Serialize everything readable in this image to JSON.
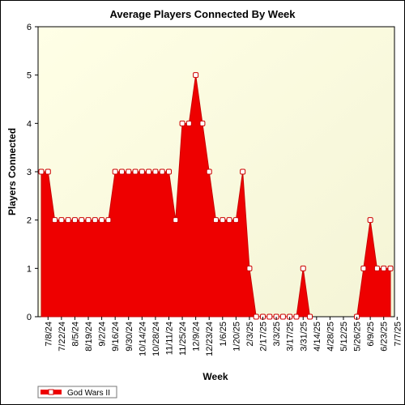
{
  "chart_data": {
    "type": "area",
    "title": "Average Players Connected By Week",
    "xlabel": "Week",
    "ylabel": "Players Connected",
    "ylim": [
      0,
      6
    ],
    "yticks": [
      0,
      1,
      2,
      3,
      4,
      5,
      6
    ],
    "grid": false,
    "legend_position": "bottom-left",
    "x_tick_labels": [
      "7/8/24",
      "7/22/24",
      "8/5/24",
      "8/19/24",
      "9/2/24",
      "9/16/24",
      "9/30/24",
      "10/14/24",
      "10/28/24",
      "11/11/24",
      "11/25/24",
      "12/9/24",
      "12/23/24",
      "1/6/25",
      "1/20/25",
      "2/3/25",
      "2/17/25",
      "3/3/25",
      "3/17/25",
      "3/31/25",
      "4/14/25",
      "4/28/25",
      "5/12/25",
      "5/26/25",
      "6/9/25",
      "6/23/25",
      "7/7/25"
    ],
    "series": [
      {
        "name": "God Wars II",
        "color": "#ee0000",
        "marker": "square-white",
        "points": [
          {
            "x": "7/1/24",
            "y": 3
          },
          {
            "x": "7/8/24",
            "y": 3
          },
          {
            "x": "7/15/24",
            "y": 2
          },
          {
            "x": "7/22/24",
            "y": 2
          },
          {
            "x": "7/29/24",
            "y": 2
          },
          {
            "x": "8/5/24",
            "y": 2
          },
          {
            "x": "8/12/24",
            "y": 2
          },
          {
            "x": "8/19/24",
            "y": 2
          },
          {
            "x": "8/26/24",
            "y": 2
          },
          {
            "x": "9/2/24",
            "y": 2
          },
          {
            "x": "9/9/24",
            "y": 2
          },
          {
            "x": "9/16/24",
            "y": 3
          },
          {
            "x": "9/23/24",
            "y": 3
          },
          {
            "x": "9/30/24",
            "y": 3
          },
          {
            "x": "10/7/24",
            "y": 3
          },
          {
            "x": "10/14/24",
            "y": 3
          },
          {
            "x": "10/21/24",
            "y": 3
          },
          {
            "x": "10/28/24",
            "y": 3
          },
          {
            "x": "11/4/24",
            "y": 3
          },
          {
            "x": "11/11/24",
            "y": 3
          },
          {
            "x": "11/18/24",
            "y": 2
          },
          {
            "x": "11/25/24",
            "y": 4
          },
          {
            "x": "12/2/24",
            "y": 4
          },
          {
            "x": "12/9/24",
            "y": 5
          },
          {
            "x": "12/16/24",
            "y": 4
          },
          {
            "x": "12/23/24",
            "y": 3
          },
          {
            "x": "12/30/24",
            "y": 2
          },
          {
            "x": "1/6/25",
            "y": 2
          },
          {
            "x": "1/13/25",
            "y": 2
          },
          {
            "x": "1/20/25",
            "y": 2
          },
          {
            "x": "1/27/25",
            "y": 3
          },
          {
            "x": "2/3/25",
            "y": 1
          },
          {
            "x": "2/10/25",
            "y": 0
          },
          {
            "x": "2/17/25",
            "y": 0
          },
          {
            "x": "2/24/25",
            "y": 0
          },
          {
            "x": "3/3/25",
            "y": 0
          },
          {
            "x": "3/10/25",
            "y": 0
          },
          {
            "x": "3/17/25",
            "y": 0
          },
          {
            "x": "3/24/25",
            "y": 0
          },
          {
            "x": "3/31/25",
            "y": 1
          },
          {
            "x": "4/7/25",
            "y": 0
          },
          {
            "x": "5/26/25",
            "y": 0
          },
          {
            "x": "6/2/25",
            "y": 1
          },
          {
            "x": "6/9/25",
            "y": 2
          },
          {
            "x": "6/16/25",
            "y": 1
          },
          {
            "x": "6/23/25",
            "y": 1
          },
          {
            "x": "6/30/25",
            "y": 1
          }
        ]
      }
    ]
  }
}
